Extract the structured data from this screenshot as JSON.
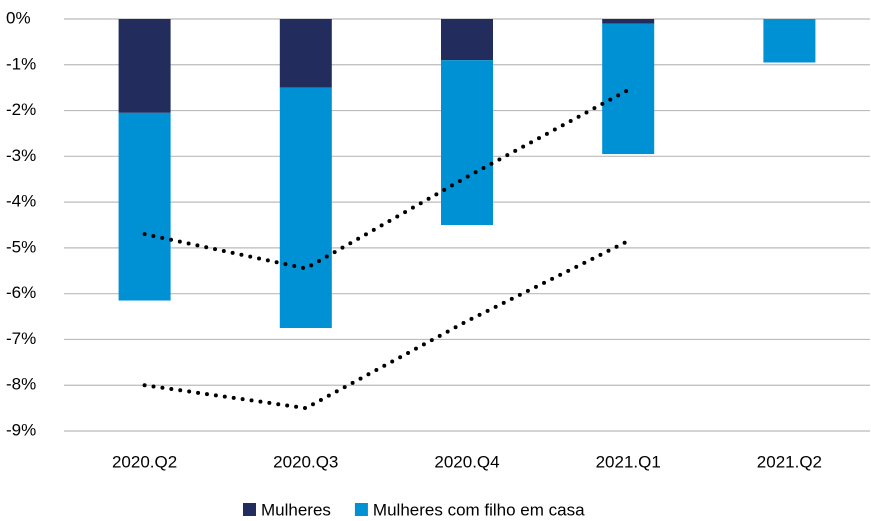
{
  "chart_data": {
    "type": "bar",
    "stacked": true,
    "categories": [
      "2020.Q2",
      "2020.Q3",
      "2020.Q4",
      "2021.Q1",
      "2021.Q2"
    ],
    "series": [
      {
        "name": "Mulheres",
        "type": "bar",
        "color": "#222d5e",
        "values": [
          -2.05,
          -1.5,
          -0.9,
          -0.1,
          0
        ]
      },
      {
        "name": "Mulheres com filho em casa",
        "type": "bar",
        "color": "#0090d4",
        "values": [
          -4.1,
          -5.25,
          -3.6,
          -2.85,
          -0.95
        ]
      },
      {
        "type": "line",
        "color": "#000000",
        "values": [
          -4.7,
          -5.45,
          -3.45,
          -1.55,
          null
        ]
      },
      {
        "type": "line",
        "color": "#000000",
        "values": [
          -8.0,
          -8.5,
          -6.6,
          -4.85,
          null
        ]
      }
    ],
    "ylim": [
      -9,
      0
    ],
    "yticks": [
      {
        "value": 0,
        "label": "0%"
      },
      {
        "value": -1,
        "label": "-1%"
      },
      {
        "value": -2,
        "label": "-2%"
      },
      {
        "value": -3,
        "label": "-3%"
      },
      {
        "value": -4,
        "label": "-4%"
      },
      {
        "value": -5,
        "label": "-5%"
      },
      {
        "value": -6,
        "label": "-6%"
      },
      {
        "value": -7,
        "label": "-7%"
      },
      {
        "value": -8,
        "label": "-8%"
      },
      {
        "value": -9,
        "label": "-9%"
      }
    ],
    "grid": true,
    "legend": "bottom"
  }
}
